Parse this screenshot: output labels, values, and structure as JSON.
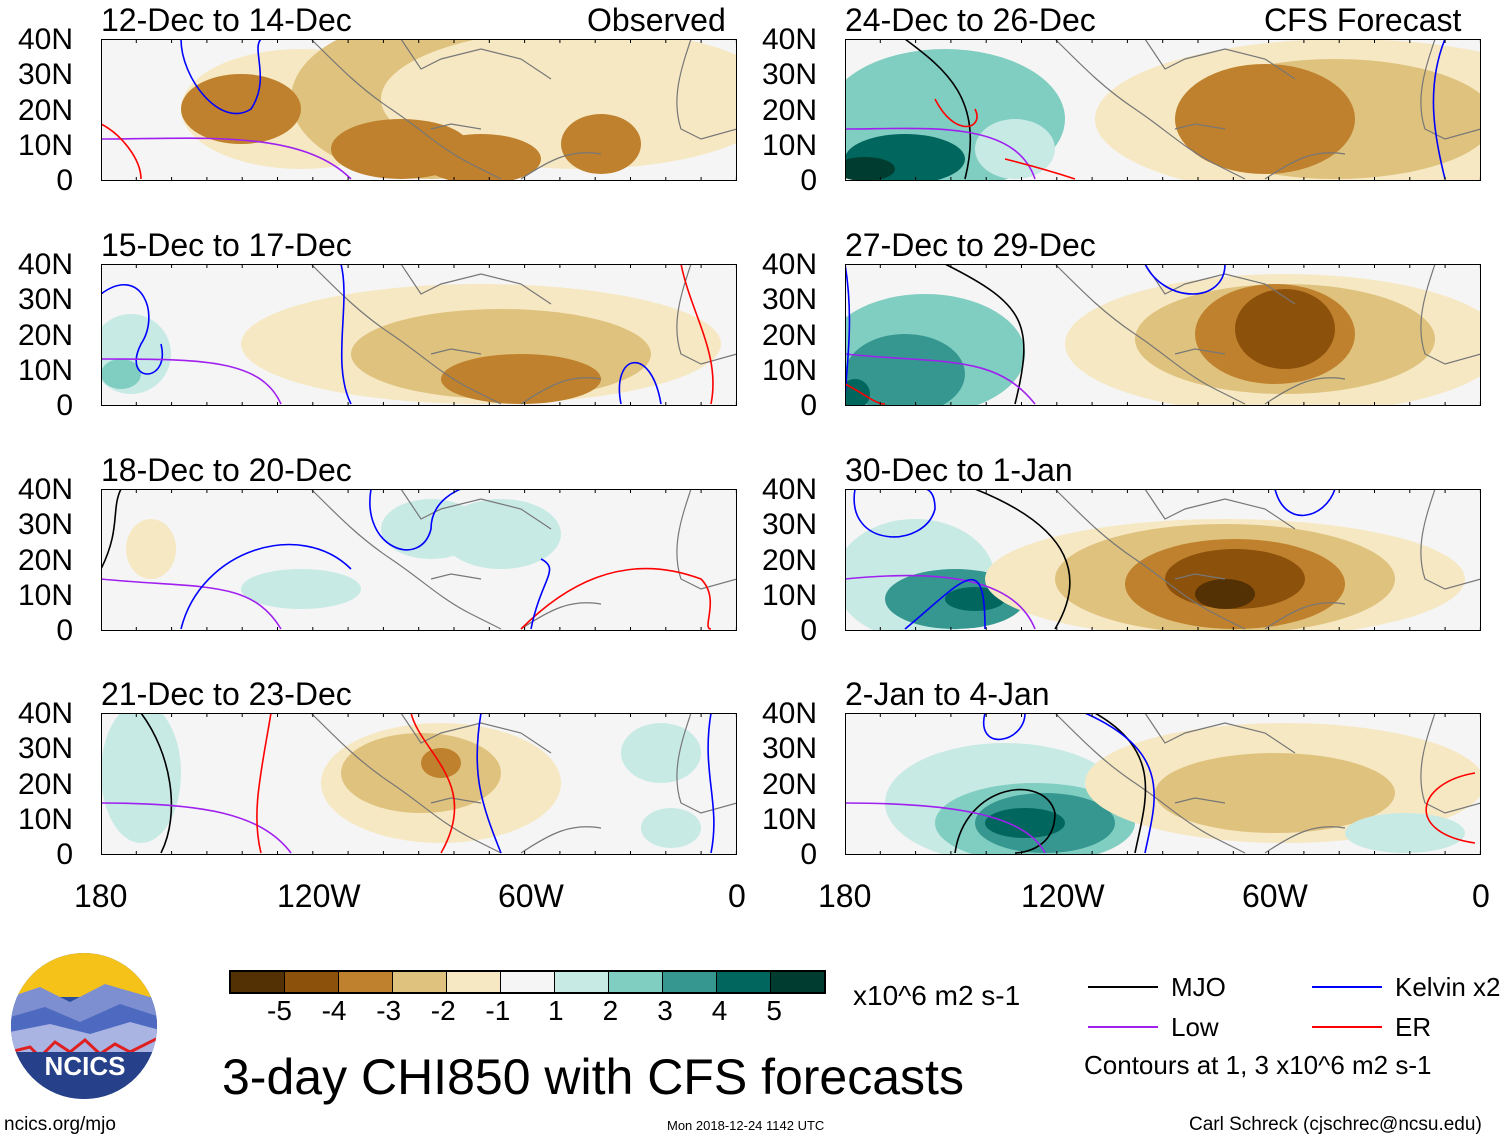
{
  "header": {
    "observed_label": "Observed",
    "forecast_label": "CFS Forecast"
  },
  "panels": [
    {
      "title": "12-Dec to 14-Dec",
      "column": "observed"
    },
    {
      "title": "15-Dec to 17-Dec",
      "column": "observed"
    },
    {
      "title": "18-Dec to 20-Dec",
      "column": "observed"
    },
    {
      "title": "21-Dec to 23-Dec",
      "column": "observed"
    },
    {
      "title": "24-Dec to 26-Dec",
      "column": "forecast"
    },
    {
      "title": "27-Dec to 29-Dec",
      "column": "forecast"
    },
    {
      "title": "30-Dec to 1-Jan",
      "column": "forecast"
    },
    {
      "title": "2-Jan to 4-Jan",
      "column": "forecast"
    }
  ],
  "y_ticks": [
    "40N",
    "30N",
    "20N",
    "10N",
    "0"
  ],
  "x_ticks": [
    "180",
    "120W",
    "60W",
    "0"
  ],
  "chart_data": {
    "type": "heatmap",
    "title": "3-day CHI850 with CFS forecasts",
    "variable": "CHI850",
    "units": "x10^6 m2 s-1",
    "lon_range": [
      -180,
      0
    ],
    "lat_range": [
      0,
      40
    ],
    "colorbar": {
      "levels": [
        "-5",
        "-4",
        "-3",
        "-2",
        "-1",
        "1",
        "2",
        "3",
        "4",
        "5"
      ],
      "colors": [
        "#543005",
        "#8c510a",
        "#bf812d",
        "#dfc27d",
        "#f6e8c3",
        "#f5f5f5",
        "#c7eae5",
        "#80cdc1",
        "#35978f",
        "#01665e",
        "#003c30"
      ]
    },
    "legend": [
      {
        "label": "MJO",
        "color": "#000000"
      },
      {
        "label": "Kelvin x2",
        "color": "#0000ff"
      },
      {
        "label": "Low",
        "color": "#a020f0"
      },
      {
        "label": "ER",
        "color": "#ff0000"
      }
    ],
    "contour_note": "Contours at 1, 3 x10^6 m2 s-1"
  },
  "footer": {
    "logo_text": "NCICS",
    "url": "ncics.org/mjo",
    "timestamp": "Mon 2018-12-24 1142 UTC",
    "credit": "Carl Schreck (cjschrec@ncsu.edu)"
  }
}
